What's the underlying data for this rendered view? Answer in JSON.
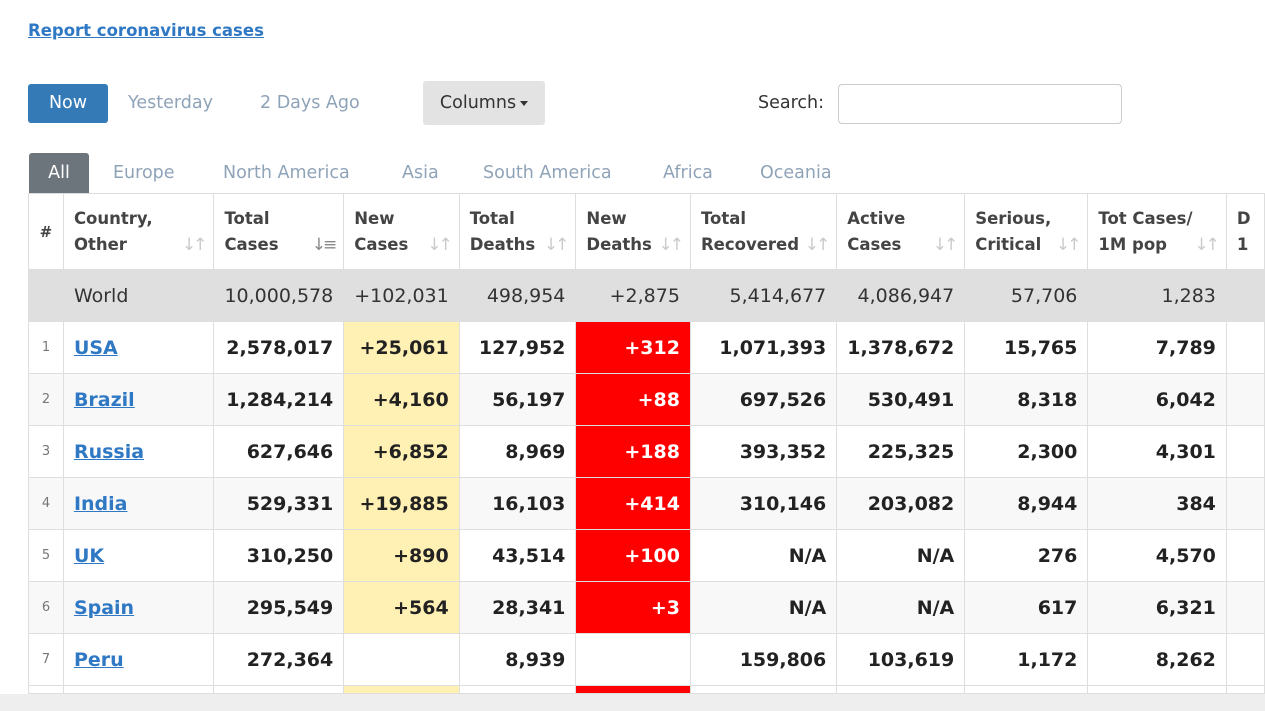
{
  "report_link": "Report coronavirus cases",
  "day_tabs": [
    "Now",
    "Yesterday",
    "2 Days Ago"
  ],
  "columns_label": "Columns",
  "search": {
    "label": "Search:",
    "placeholder": "",
    "value": ""
  },
  "region_tabs": [
    "All",
    "Europe",
    "North America",
    "Asia",
    "South America",
    "Africa",
    "Oceania"
  ],
  "headers": {
    "rank": "#",
    "country": [
      "Country,",
      "Other"
    ],
    "total_cases": [
      "Total",
      "Cases"
    ],
    "new_cases": [
      "New",
      "Cases"
    ],
    "total_deaths": [
      "Total",
      "Deaths"
    ],
    "new_deaths": [
      "New",
      "Deaths"
    ],
    "total_recovered": [
      "Total",
      "Recovered"
    ],
    "active_cases": [
      "Active",
      "Cases"
    ],
    "serious": [
      "Serious,",
      "Critical"
    ],
    "tot_per_m": [
      "Tot Cases/",
      "1M pop"
    ],
    "deaths_per_m": [
      "D",
      "1"
    ]
  },
  "world": {
    "country": "World",
    "total_cases": "10,000,578",
    "new_cases": "+102,031",
    "total_deaths": "498,954",
    "new_deaths": "+2,875",
    "total_recovered": "5,414,677",
    "active_cases": "4,086,947",
    "serious": "57,706",
    "tot_per_m": "1,283"
  },
  "rows": [
    {
      "rank": "1",
      "country": "USA",
      "total_cases": "2,578,017",
      "new_cases": "+25,061",
      "total_deaths": "127,952",
      "new_deaths": "+312",
      "total_recovered": "1,071,393",
      "active_cases": "1,378,672",
      "serious": "15,765",
      "tot_per_m": "7,789"
    },
    {
      "rank": "2",
      "country": "Brazil",
      "total_cases": "1,284,214",
      "new_cases": "+4,160",
      "total_deaths": "56,197",
      "new_deaths": "+88",
      "total_recovered": "697,526",
      "active_cases": "530,491",
      "serious": "8,318",
      "tot_per_m": "6,042"
    },
    {
      "rank": "3",
      "country": "Russia",
      "total_cases": "627,646",
      "new_cases": "+6,852",
      "total_deaths": "8,969",
      "new_deaths": "+188",
      "total_recovered": "393,352",
      "active_cases": "225,325",
      "serious": "2,300",
      "tot_per_m": "4,301"
    },
    {
      "rank": "4",
      "country": "India",
      "total_cases": "529,331",
      "new_cases": "+19,885",
      "total_deaths": "16,103",
      "new_deaths": "+414",
      "total_recovered": "310,146",
      "active_cases": "203,082",
      "serious": "8,944",
      "tot_per_m": "384"
    },
    {
      "rank": "5",
      "country": "UK",
      "total_cases": "310,250",
      "new_cases": "+890",
      "total_deaths": "43,514",
      "new_deaths": "+100",
      "total_recovered": "N/A",
      "active_cases": "N/A",
      "serious": "276",
      "tot_per_m": "4,570"
    },
    {
      "rank": "6",
      "country": "Spain",
      "total_cases": "295,549",
      "new_cases": "+564",
      "total_deaths": "28,341",
      "new_deaths": "+3",
      "total_recovered": "N/A",
      "active_cases": "N/A",
      "serious": "617",
      "tot_per_m": "6,321"
    },
    {
      "rank": "7",
      "country": "Peru",
      "total_cases": "272,364",
      "new_cases": "",
      "total_deaths": "8,939",
      "new_deaths": "",
      "total_recovered": "159,806",
      "active_cases": "103,619",
      "serious": "1,172",
      "tot_per_m": "8,262"
    }
  ],
  "colors": {
    "accent": "#337ab7",
    "link": "#2f78c4",
    "new_cases_highlight": "#fff0b3",
    "new_deaths_highlight": "#ff0000",
    "world_row": "#dfdfdf",
    "active_tab": "#6d757c"
  },
  "icons": {
    "sort": "sort-icon",
    "caret": "caret-down-icon"
  }
}
